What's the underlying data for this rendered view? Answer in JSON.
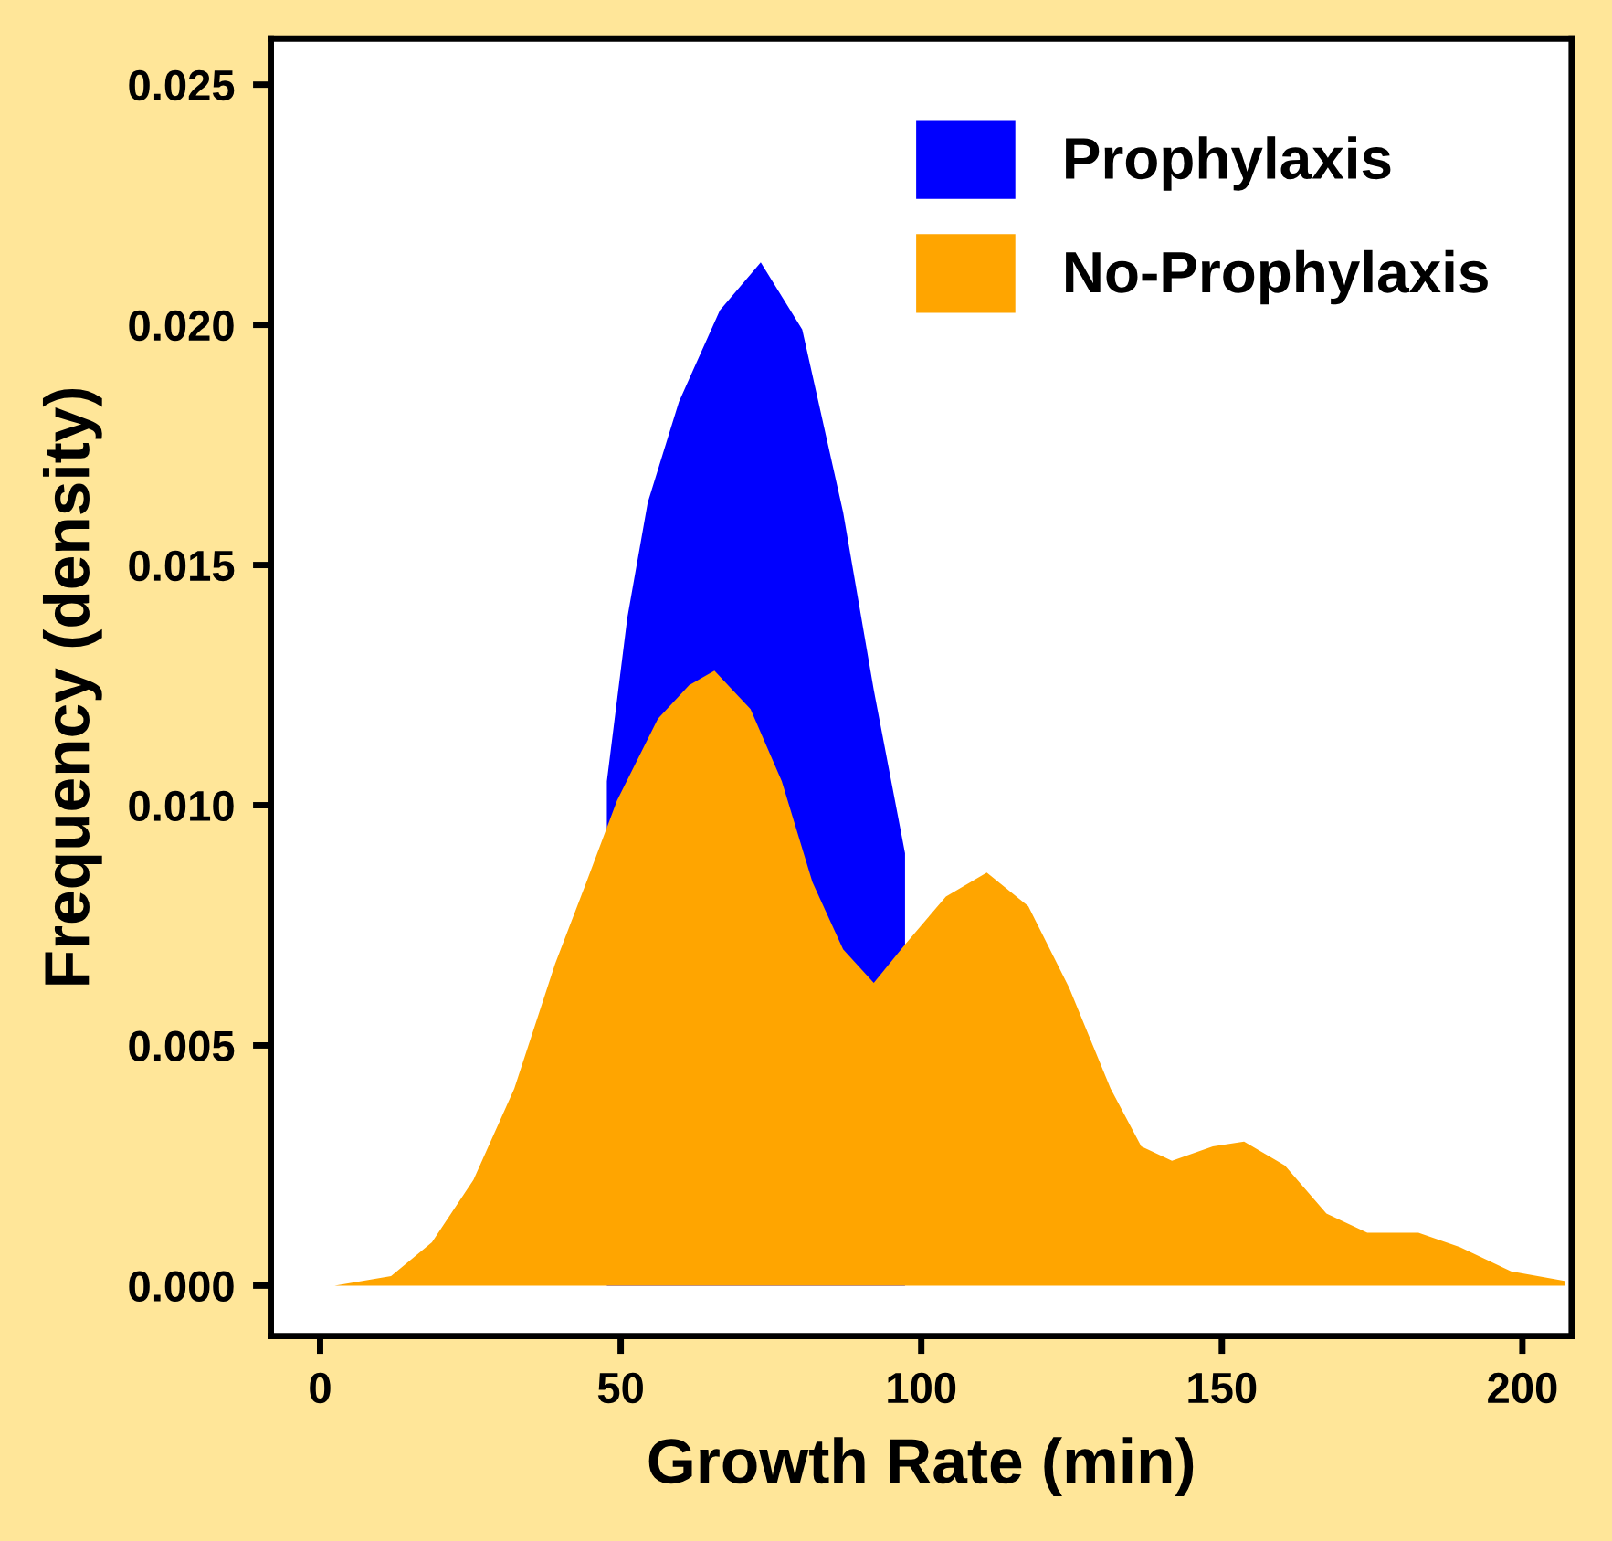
{
  "chart_data": {
    "type": "area",
    "xlabel": "Growth Rate (min)",
    "ylabel": "Frequency (density)",
    "xlim": [
      -8.2,
      208.2
    ],
    "ylim": [
      -0.00105,
      0.02596
    ],
    "xticks": [
      0,
      50,
      100,
      150,
      200
    ],
    "yticks": [
      {
        "value": 0,
        "label": "0.000"
      },
      {
        "value": 0.005,
        "label": "0.005"
      },
      {
        "value": 0.01,
        "label": "0.010"
      },
      {
        "value": 0.015,
        "label": "0.015"
      },
      {
        "value": 0.02,
        "label": "0.020"
      },
      {
        "value": 0.025,
        "label": "0.025"
      }
    ],
    "legend": "top right",
    "grid": false,
    "series": [
      {
        "name": "Prophylaxis",
        "color": "#0000ff",
        "x": [
          47.7,
          51.1,
          54.5,
          59.7,
          66.5,
          73.3,
          80.2,
          87.0,
          92.1,
          97.3
        ],
        "values": [
          0.0105,
          0.0139,
          0.0163,
          0.0184,
          0.0203,
          0.0213,
          0.0199,
          0.0161,
          0.0124,
          0.009
        ]
      },
      {
        "name": "No-Prophylaxis",
        "color": "#ffa500",
        "x": [
          2.4,
          11.8,
          18.6,
          25.5,
          32.3,
          39.1,
          44.3,
          49.4,
          56.2,
          61.4,
          65.6,
          71.6,
          76.8,
          81.9,
          87.0,
          92.1,
          97.3,
          104.1,
          110.9,
          117.8,
          124.6,
          131.5,
          136.6,
          141.7,
          148.5,
          153.7,
          160.5,
          167.4,
          174.2,
          182.7,
          189.6,
          198.1,
          207.0
        ],
        "values": [
          0.0,
          0.0002,
          0.0009,
          0.0022,
          0.0041,
          0.0067,
          0.0084,
          0.0101,
          0.0118,
          0.0125,
          0.0128,
          0.012,
          0.0105,
          0.0084,
          0.007,
          0.0063,
          0.0071,
          0.0081,
          0.0086,
          0.0079,
          0.0062,
          0.0041,
          0.0029,
          0.0026,
          0.0029,
          0.003,
          0.0025,
          0.0015,
          0.0011,
          0.0011,
          0.0008,
          0.0003,
          0.0001
        ]
      }
    ]
  }
}
